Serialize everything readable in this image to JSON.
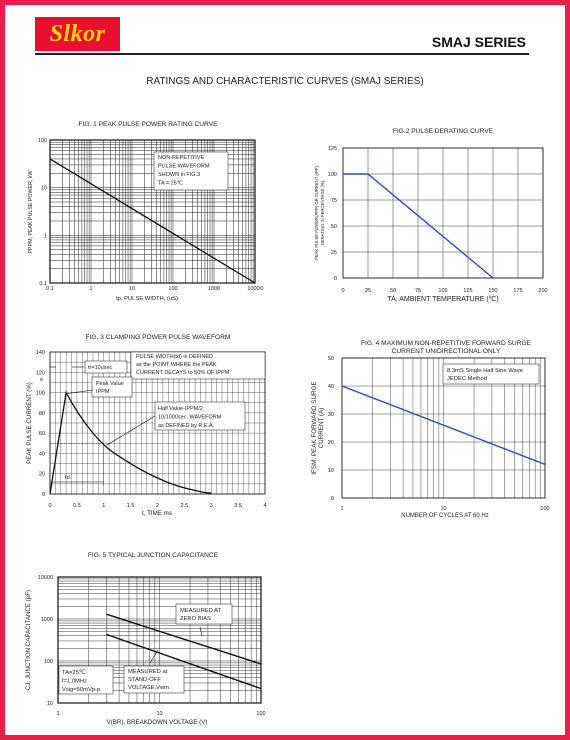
{
  "header": {
    "logo_text": "Slkor",
    "series_title": "SMAJ SERIES"
  },
  "page_title": "RATINGS AND CHARACTERISTIC CURVES (SMAJ SERIES)",
  "colors": {
    "frame": "#e8204a",
    "logo_bg": "#e8102e",
    "logo_text": "#ffd400",
    "derating_line": "#2b4fb5",
    "surge_line": "#2b4fb5"
  },
  "chart_data": [
    {
      "id": "fig1",
      "type": "line",
      "title": "FIG. 1 PEAK PULSE POWER RATING CURVE",
      "xlabel": "tp, PULSE WIDTH, (uS)",
      "ylabel_sub": "PPPM",
      "ylabel": "PPPM, PEAK PULSE POWER, kW",
      "xscale": "log",
      "yscale": "log",
      "xlim": [
        0.1,
        10000
      ],
      "ylim": [
        0.1,
        100
      ],
      "xticks": [
        "0.1",
        "1",
        "10",
        "100",
        "1000",
        "10000"
      ],
      "yticks": [
        "0.1",
        "1",
        "10",
        "100"
      ],
      "annotation": [
        "NON-REPETITIVE",
        "PULSE WAVEFORM",
        "SHOWN in FIG.3",
        "TA = 25℃"
      ],
      "x": [
        0.1,
        10000
      ],
      "y": [
        40,
        0.1
      ]
    },
    {
      "id": "fig2",
      "type": "line",
      "title": "FIG.2 PULSE DERATING CURVE",
      "xlabel": "TA, AMBIENT TEMPERATURE (ºC)",
      "ylabel": [
        "PEAK PULSE POWER(PPP) OR CURRENT (IPP)",
        "DERATING IN PERCENTAGE (%)"
      ],
      "xlim": [
        0,
        200
      ],
      "ylim": [
        0,
        125
      ],
      "xticks": [
        "0",
        "25",
        "50",
        "75",
        "100",
        "125",
        "150",
        "175",
        "200"
      ],
      "yticks": [
        "0",
        "25",
        "50",
        "75",
        "100",
        "125"
      ],
      "x": [
        0,
        25,
        150
      ],
      "y": [
        100,
        100,
        0
      ]
    },
    {
      "id": "fig3",
      "type": "line",
      "title": "FIG. 3 CLAMPING POWER PULSE WAVEFORM",
      "xlabel": "t, TIME ms",
      "ylabel": "PEAK PULSE CURRENT (%)",
      "xlim": [
        0,
        4
      ],
      "ylim": [
        0,
        140
      ],
      "xticks": [
        "0",
        "0.5",
        "1",
        "1.5",
        "2",
        "2.5",
        "3",
        "3.5",
        "4"
      ],
      "yticks": [
        "0",
        "20",
        "40",
        "60",
        "80",
        "100",
        "120",
        "140"
      ],
      "annotations": {
        "tr": "tr=10usec",
        "pulse": [
          "PULSE WIDTH(td) is DEFINED",
          "as the POINT WHERE the PEAK",
          "CURRENT DECAYS to 50% OF IPPM"
        ],
        "peak": [
          "Peak Value",
          "IPPM"
        ],
        "half": [
          "Half Value-IPPM/2",
          "10/1000sec, WAVEFORM",
          "as DEFINED by R.E.A."
        ],
        "td": "td",
        "e": "e"
      },
      "x": [
        0,
        0.3,
        0.5,
        0.8,
        1.0,
        1.5,
        2.0,
        2.5,
        3.0
      ],
      "y": [
        0,
        100,
        80,
        60,
        50,
        30,
        16,
        6,
        1
      ]
    },
    {
      "id": "fig4",
      "type": "line",
      "title": [
        "FIG. 4 MAXIMUM  NON-REPETITIVE FORWARD SURGE",
        "CURRENT UNIDIRECTIONAL ONLY"
      ],
      "xlabel": "NUMBER OF CYCLES AT 60 Hz",
      "ylabel": [
        "IFSM, PEAK FORWARD SURGE",
        "CURRENT (A)"
      ],
      "xscale": "log",
      "xlim": [
        1,
        100
      ],
      "ylim": [
        0,
        50
      ],
      "xticks": [
        "1",
        "10",
        "100"
      ],
      "yticks": [
        "0",
        "10",
        "20",
        "30",
        "40",
        "50"
      ],
      "annotation": [
        "8.3mS Single Half Sine Wave",
        "JEDEC Method"
      ],
      "x": [
        1,
        100
      ],
      "y": [
        40,
        12
      ]
    },
    {
      "id": "fig5",
      "type": "line",
      "title": "FIG. 5 TYPICAL JUNCTION CAPACITANCE",
      "xlabel": "V(BR), BREAKDOWN VOLTAGE (V)",
      "ylabel": "CJ, JUNCTION CAPACITANCE (pF)",
      "xscale": "log",
      "yscale": "log",
      "xlim": [
        1,
        100
      ],
      "ylim": [
        10,
        10000
      ],
      "xticks": [
        "1",
        "10",
        "100"
      ],
      "yticks": [
        "10",
        "100",
        "1000",
        "10000"
      ],
      "annotations": {
        "zero": [
          "MEASURED AT",
          "ZERO BIAS"
        ],
        "standoff": [
          "MEASURED at",
          "STAND-OFF",
          "VOLTAGE,Vwm"
        ],
        "cond": [
          "TA=25℃",
          "f=1.0MHz",
          "Vsig=50mVp-p"
        ]
      },
      "series": [
        {
          "x": [
            3,
            100
          ],
          "y": [
            1300,
            85
          ]
        },
        {
          "x": [
            3,
            100
          ],
          "y": [
            430,
            22
          ]
        }
      ]
    }
  ]
}
